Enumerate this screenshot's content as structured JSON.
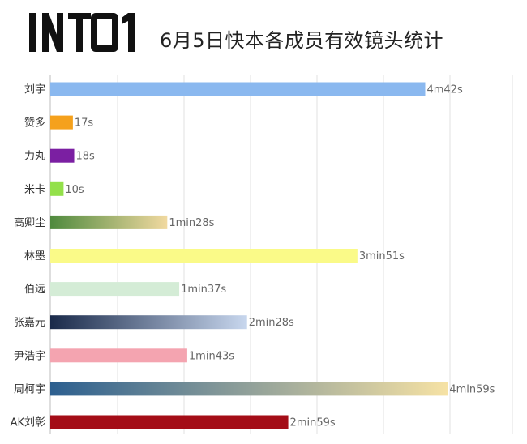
{
  "header": {
    "logo_text": "INTO1",
    "title": "6月5日快本各成员有效镜头统计"
  },
  "colors": {
    "刘宇": "#8ab8ef",
    "赞多": "#f5a11c",
    "力丸": "#7b1fa2",
    "米卡": "#93e04a",
    "高卿尘": [
      "#4f8a3e",
      "#f1d9a0"
    ],
    "林墨": "#fafa88",
    "伯远": "#d4ecd6",
    "张嘉元": [
      "#1a2a4a",
      "#c8d7ee"
    ],
    "尹浩宇": "#f4a4b0",
    "周柯宇": [
      "#2c5f8f",
      "#f6e2a4"
    ],
    "AK刘彰": "#a40d17"
  },
  "chart_data": {
    "type": "bar",
    "orientation": "horizontal",
    "title": "6月5日快本各成员有效镜头统计",
    "xlabel": "",
    "ylabel": "",
    "unit": "seconds",
    "xlim": [
      0,
      340
    ],
    "grid": true,
    "categories": [
      "刘宇",
      "赞多",
      "力丸",
      "米卡",
      "高卿尘",
      "林墨",
      "伯远",
      "张嘉元",
      "尹浩宇",
      "周柯宇",
      "AK刘彰"
    ],
    "values": [
      282,
      17,
      18,
      10,
      88,
      231,
      97,
      148,
      103,
      299,
      179
    ],
    "data_labels": [
      "4m42s",
      "17s",
      "18s",
      "10s",
      "1min28s",
      "3min51s",
      "1min37s",
      "2min28s",
      "1min43s",
      "4min59s",
      "2min59s"
    ]
  }
}
